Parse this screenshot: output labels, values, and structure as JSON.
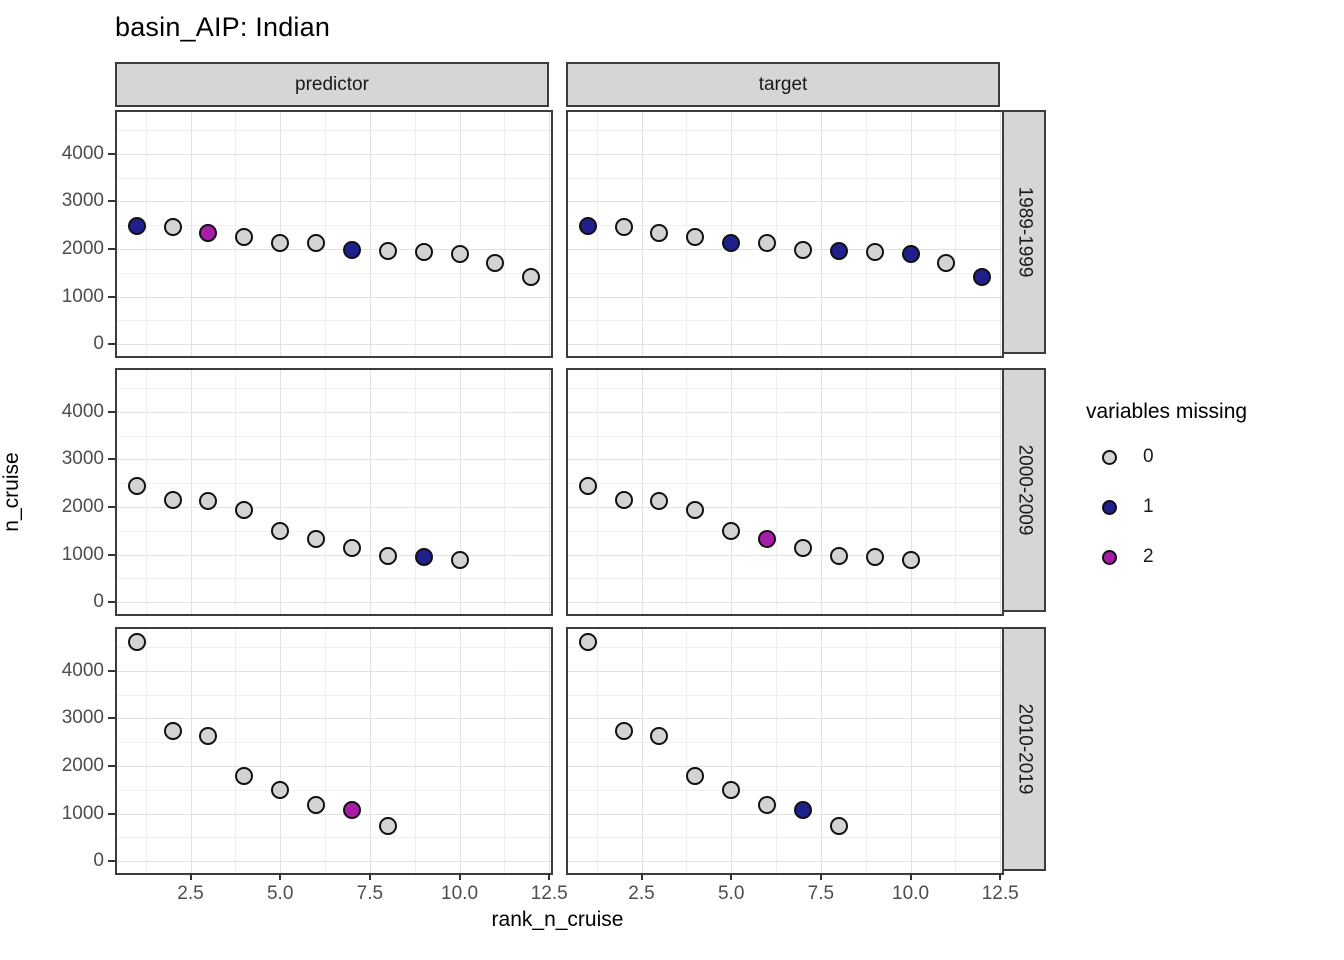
{
  "title": "basin_AIP: Indian",
  "colors": {
    "missing0": "#d3d3d3",
    "missing1": "#20208c",
    "missing2": "#a81ca8",
    "point_stroke": "#111111",
    "strip_bg": "#d6d6d6",
    "panel_border": "#3c3c3c",
    "grid_major": "#e2e2e2",
    "grid_minor": "#efefef",
    "tick_text": "#4d4d4d"
  },
  "facets": {
    "columns": [
      "predictor",
      "target"
    ],
    "rows": [
      "1989-1999",
      "2000-2009",
      "2010-2019"
    ]
  },
  "axes": {
    "x_label": "rank_n_cruise",
    "y_label": "n_cruise",
    "x_tick_labels": [
      "2.5",
      "5.0",
      "7.5",
      "10.0",
      "12.5"
    ],
    "y_tick_labels": [
      "0",
      "1000",
      "2000",
      "3000",
      "4000"
    ]
  },
  "legend": {
    "title": "variables missing",
    "entries": [
      {
        "label": "0",
        "missing": 0
      },
      {
        "label": "1",
        "missing": 1
      },
      {
        "label": "2",
        "missing": 2
      }
    ]
  },
  "chart_data": {
    "type": "scatter",
    "title": "basin_AIP: Indian",
    "xlabel": "rank_n_cruise",
    "ylabel": "n_cruise",
    "xlim": [
      0.45,
      12.55
    ],
    "ylim": [
      -250,
      4880
    ],
    "x_major_ticks": [
      2.5,
      5.0,
      7.5,
      10.0,
      12.5
    ],
    "x_minor_ticks": [
      1.25,
      3.75,
      6.25,
      8.75,
      11.25
    ],
    "y_major_ticks": [
      0,
      1000,
      2000,
      3000,
      4000
    ],
    "y_minor_ticks": [
      500,
      1500,
      2500,
      3500,
      4500
    ],
    "grid": true,
    "legend_title": "variables missing",
    "legend_position": "right",
    "facet_cols": [
      "predictor",
      "target"
    ],
    "facet_rows": [
      "1989-1999",
      "2000-2009",
      "2010-2019"
    ],
    "panels": [
      {
        "facet_col": "predictor",
        "facet_row": "1989-1999",
        "x": [
          1,
          2,
          3,
          4,
          5,
          6,
          7,
          8,
          9,
          10,
          11,
          12
        ],
        "y": [
          2480,
          2460,
          2340,
          2250,
          2130,
          2120,
          1980,
          1950,
          1930,
          1890,
          1710,
          1410
        ],
        "missing": [
          1,
          0,
          2,
          0,
          0,
          0,
          1,
          0,
          0,
          0,
          0,
          0
        ]
      },
      {
        "facet_col": "target",
        "facet_row": "1989-1999",
        "x": [
          1,
          2,
          3,
          4,
          5,
          6,
          7,
          8,
          9,
          10,
          11,
          12
        ],
        "y": [
          2480,
          2460,
          2340,
          2250,
          2130,
          2120,
          1980,
          1950,
          1930,
          1890,
          1710,
          1410
        ],
        "missing": [
          1,
          0,
          0,
          0,
          1,
          0,
          0,
          1,
          0,
          1,
          0,
          1
        ]
      },
      {
        "facet_col": "predictor",
        "facet_row": "2000-2009",
        "x": [
          1,
          2,
          3,
          4,
          5,
          6,
          7,
          8,
          9,
          10
        ],
        "y": [
          2450,
          2140,
          2130,
          1930,
          1490,
          1330,
          1140,
          960,
          950,
          890
        ],
        "missing": [
          0,
          0,
          0,
          0,
          0,
          0,
          0,
          0,
          1,
          0
        ]
      },
      {
        "facet_col": "target",
        "facet_row": "2000-2009",
        "x": [
          1,
          2,
          3,
          4,
          5,
          6,
          7,
          8,
          9,
          10
        ],
        "y": [
          2450,
          2140,
          2130,
          1930,
          1490,
          1330,
          1140,
          960,
          950,
          890
        ],
        "missing": [
          0,
          0,
          0,
          0,
          0,
          2,
          0,
          0,
          0,
          0
        ]
      },
      {
        "facet_col": "predictor",
        "facet_row": "2010-2019",
        "x": [
          1,
          2,
          3,
          4,
          5,
          6,
          7,
          8
        ],
        "y": [
          4610,
          2740,
          2630,
          1780,
          1490,
          1180,
          1070,
          740
        ],
        "missing": [
          0,
          0,
          0,
          0,
          0,
          0,
          2,
          0
        ]
      },
      {
        "facet_col": "target",
        "facet_row": "2010-2019",
        "x": [
          1,
          2,
          3,
          4,
          5,
          6,
          7,
          8
        ],
        "y": [
          4610,
          2740,
          2630,
          1780,
          1490,
          1180,
          1070,
          740
        ],
        "missing": [
          0,
          0,
          0,
          0,
          0,
          0,
          1,
          0
        ]
      }
    ]
  }
}
